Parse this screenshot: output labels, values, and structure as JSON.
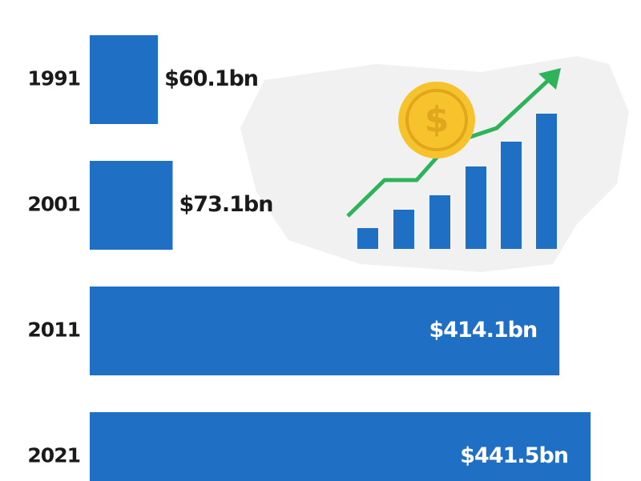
{
  "chart_data": {
    "type": "hbar",
    "categories": [
      "1991",
      "2001",
      "2011",
      "2021"
    ],
    "values": [
      60.1,
      73.1,
      414.1,
      441.5
    ],
    "value_labels": [
      "$60.1bn",
      "$73.1bn",
      "$414.1bn",
      "$441.5bn"
    ],
    "color": "#1f6fc5"
  }
}
